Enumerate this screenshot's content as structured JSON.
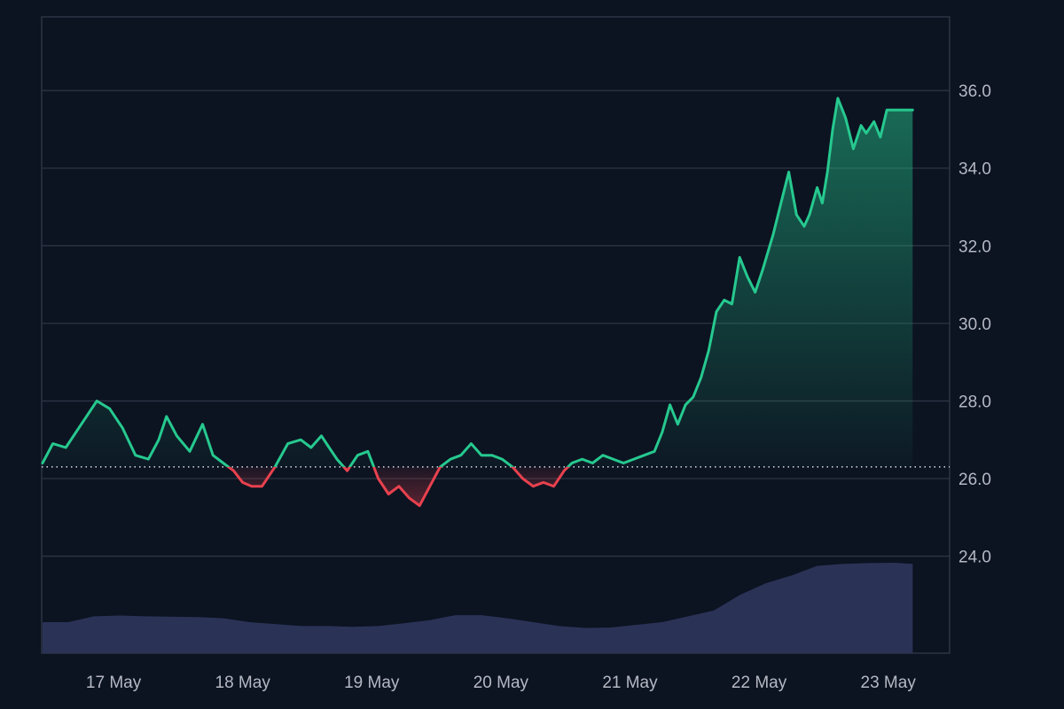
{
  "chart_data": {
    "type": "line",
    "title": "",
    "xlabel": "",
    "ylabel": "",
    "ylim": [
      21.5,
      37.9
    ],
    "baseline": 26.3,
    "y_ticks": [
      "24.0",
      "26.0",
      "28.0",
      "30.0",
      "32.0",
      "34.0",
      "36.0"
    ],
    "x_ticks": [
      "17 May",
      "18 May",
      "19 May",
      "20 May",
      "21 May",
      "22 May",
      "23 May"
    ],
    "grid": true,
    "colors": {
      "background": "#0c1321",
      "above_baseline": "#26c98f",
      "below_baseline": "#e8414e",
      "volume": "#2a3356",
      "grid": "#2c3444",
      "baseline_dots": "#c9ced6",
      "tick_text": "#b4b9c3"
    },
    "price": {
      "x_days": [
        0.0,
        0.08,
        0.18,
        0.3,
        0.42,
        0.52,
        0.62,
        0.72,
        0.82,
        0.9,
        0.96,
        1.04,
        1.14,
        1.24,
        1.32,
        1.4,
        1.48,
        1.55,
        1.62,
        1.7,
        1.8,
        1.9,
        2.0,
        2.08,
        2.16,
        2.22,
        2.28,
        2.36,
        2.44,
        2.52,
        2.6,
        2.68,
        2.76,
        2.84,
        2.92,
        3.0,
        3.08,
        3.16,
        3.24,
        3.32,
        3.4,
        3.48,
        3.56,
        3.64,
        3.72,
        3.8,
        3.88,
        3.96,
        4.04,
        4.1,
        4.18,
        4.26,
        4.34,
        4.42,
        4.5,
        4.58,
        4.66,
        4.74,
        4.8,
        4.86,
        4.92,
        4.98,
        5.04,
        5.1,
        5.16,
        5.22,
        5.28,
        5.34,
        5.4,
        5.46,
        5.52,
        5.58,
        5.66,
        5.72,
        5.78,
        5.84,
        5.9,
        5.94,
        6.0,
        6.04,
        6.08,
        6.12,
        6.16,
        6.22,
        6.28,
        6.34,
        6.38,
        6.44,
        6.49,
        6.54,
        6.58,
        6.62,
        6.66,
        6.7,
        6.74
      ],
      "values": [
        26.4,
        26.9,
        26.8,
        27.4,
        28.0,
        27.8,
        27.3,
        26.6,
        26.5,
        27.0,
        27.6,
        27.1,
        26.7,
        27.4,
        26.6,
        26.4,
        26.2,
        25.9,
        25.8,
        25.8,
        26.3,
        26.9,
        27.0,
        26.8,
        27.1,
        26.8,
        26.5,
        26.2,
        26.6,
        26.7,
        26.0,
        25.6,
        25.8,
        25.5,
        25.3,
        25.8,
        26.3,
        26.5,
        26.6,
        26.9,
        26.6,
        26.6,
        26.5,
        26.3,
        26.0,
        25.8,
        25.9,
        25.8,
        26.2,
        26.4,
        26.5,
        26.4,
        26.6,
        26.5,
        26.4,
        26.5,
        26.6,
        26.7,
        27.2,
        27.9,
        27.4,
        27.9,
        28.1,
        28.6,
        29.3,
        30.3,
        30.6,
        30.5,
        31.7,
        31.2,
        30.8,
        31.4,
        32.3,
        33.1,
        33.9,
        32.8,
        32.5,
        32.8,
        33.5,
        33.1,
        33.9,
        35.0,
        35.8,
        35.3,
        34.5,
        35.1,
        34.9,
        35.2,
        34.8,
        35.5,
        35.5,
        35.5,
        35.5,
        35.5,
        35.5
      ]
    },
    "volume": {
      "x_days": [
        0.0,
        0.2,
        0.4,
        0.6,
        0.8,
        1.0,
        1.2,
        1.4,
        1.6,
        1.8,
        2.0,
        2.2,
        2.4,
        2.6,
        2.8,
        3.0,
        3.2,
        3.4,
        3.6,
        3.8,
        4.0,
        4.2,
        4.4,
        4.6,
        4.8,
        5.0,
        5.2,
        5.4,
        5.6,
        5.8,
        6.0,
        6.2,
        6.4,
        6.6,
        6.74
      ],
      "values": [
        22.3,
        22.3,
        22.45,
        22.47,
        22.45,
        22.44,
        22.43,
        22.4,
        22.3,
        22.25,
        22.2,
        22.2,
        22.18,
        22.2,
        22.27,
        22.35,
        22.48,
        22.48,
        22.4,
        22.3,
        22.2,
        22.15,
        22.16,
        22.23,
        22.3,
        22.45,
        22.6,
        23.0,
        23.3,
        23.5,
        23.75,
        23.8,
        23.82,
        23.83,
        23.8
      ]
    }
  }
}
